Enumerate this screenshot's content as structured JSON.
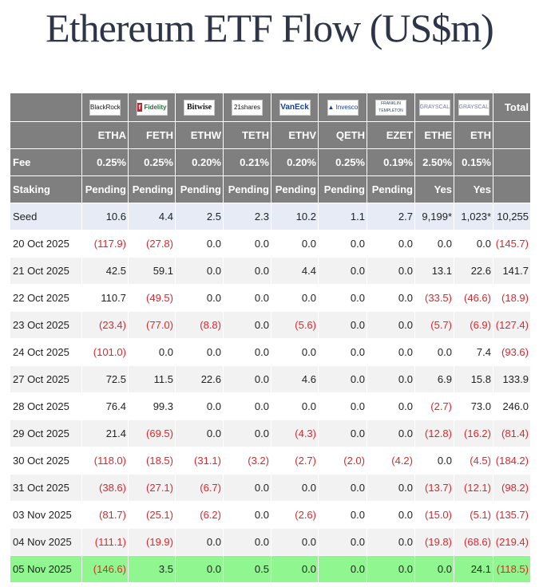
{
  "title": "Ethereum ETF Flow (US$m)",
  "colors": {
    "header_bg": "#7f7f7f",
    "negative": "#e3242b",
    "highlight": "#90f790",
    "seed_bg": "#e6ebf6"
  },
  "issuers": [
    "BlackRock",
    "Fidelity",
    "Bitwise",
    "21shares",
    "VanEck",
    "Invesco",
    "Franklin Templeton",
    "Grayscale",
    "Grayscale"
  ],
  "total_label": "Total",
  "tickers": [
    "ETHA",
    "FETH",
    "ETHW",
    "TETH",
    "ETHV",
    "QETH",
    "EZET",
    "ETHE",
    "ETH"
  ],
  "fee_label": "Fee",
  "fees": [
    "0.25%",
    "0.25%",
    "0.20%",
    "0.21%",
    "0.20%",
    "0.25%",
    "0.19%",
    "2.50%",
    "0.15%"
  ],
  "staking_label": "Staking",
  "staking": [
    "Pending",
    "Pending",
    "Pending",
    "Pending",
    "Pending",
    "Pending",
    "Pending",
    "Yes",
    "Yes"
  ],
  "rows": [
    {
      "label": "Seed",
      "cells": [
        "10.6",
        "4.4",
        "2.5",
        "2.3",
        "10.2",
        "1.1",
        "2.7",
        "9,199*",
        "1,023*",
        "10,255"
      ]
    },
    {
      "label": "20 Oct 2025",
      "cells": [
        "(117.9)",
        "(27.8)",
        "0.0",
        "0.0",
        "0.0",
        "0.0",
        "0.0",
        "0.0",
        "0.0",
        "(145.7)"
      ]
    },
    {
      "label": "21 Oct 2025",
      "cells": [
        "42.5",
        "59.1",
        "0.0",
        "0.0",
        "4.4",
        "0.0",
        "0.0",
        "13.1",
        "22.6",
        "141.7"
      ]
    },
    {
      "label": "22 Oct 2025",
      "cells": [
        "110.7",
        "(49.5)",
        "0.0",
        "0.0",
        "0.0",
        "0.0",
        "0.0",
        "(33.5)",
        "(46.6)",
        "(18.9)"
      ]
    },
    {
      "label": "23 Oct 2025",
      "cells": [
        "(23.4)",
        "(77.0)",
        "(8.8)",
        "0.0",
        "(5.6)",
        "0.0",
        "0.0",
        "(5.7)",
        "(6.9)",
        "(127.4)"
      ]
    },
    {
      "label": "24 Oct 2025",
      "cells": [
        "(101.0)",
        "0.0",
        "0.0",
        "0.0",
        "0.0",
        "0.0",
        "0.0",
        "0.0",
        "7.4",
        "(93.6)"
      ]
    },
    {
      "label": "27 Oct 2025",
      "cells": [
        "72.5",
        "11.5",
        "22.6",
        "0.0",
        "4.6",
        "0.0",
        "0.0",
        "6.9",
        "15.8",
        "133.9"
      ]
    },
    {
      "label": "28 Oct 2025",
      "cells": [
        "76.4",
        "99.3",
        "0.0",
        "0.0",
        "0.0",
        "0.0",
        "0.0",
        "(2.7)",
        "73.0",
        "246.0"
      ]
    },
    {
      "label": "29 Oct 2025",
      "cells": [
        "21.4",
        "(69.5)",
        "0.0",
        "0.0",
        "(4.3)",
        "0.0",
        "0.0",
        "(12.8)",
        "(16.2)",
        "(81.4)"
      ]
    },
    {
      "label": "30 Oct 2025",
      "cells": [
        "(118.0)",
        "(18.5)",
        "(31.1)",
        "(3.2)",
        "(2.7)",
        "(2.0)",
        "(4.2)",
        "0.0",
        "(4.5)",
        "(184.2)"
      ]
    },
    {
      "label": "31 Oct 2025",
      "cells": [
        "(38.6)",
        "(27.1)",
        "(6.7)",
        "0.0",
        "0.0",
        "0.0",
        "0.0",
        "(13.7)",
        "(12.1)",
        "(98.2)"
      ]
    },
    {
      "label": "03 Nov 2025",
      "cells": [
        "(81.7)",
        "(25.1)",
        "(6.2)",
        "0.0",
        "(2.6)",
        "0.0",
        "0.0",
        "(15.0)",
        "(5.1)",
        "(135.7)"
      ]
    },
    {
      "label": "04 Nov 2025",
      "cells": [
        "(111.1)",
        "(19.9)",
        "0.0",
        "0.0",
        "0.0",
        "0.0",
        "0.0",
        "(19.8)",
        "(68.6)",
        "(219.4)"
      ]
    },
    {
      "label": "05 Nov 2025",
      "cells": [
        "(146.6)",
        "3.5",
        "0.0",
        "0.5",
        "0.0",
        "0.0",
        "0.0",
        "0.0",
        "24.1",
        "(118.5)"
      ]
    }
  ]
}
